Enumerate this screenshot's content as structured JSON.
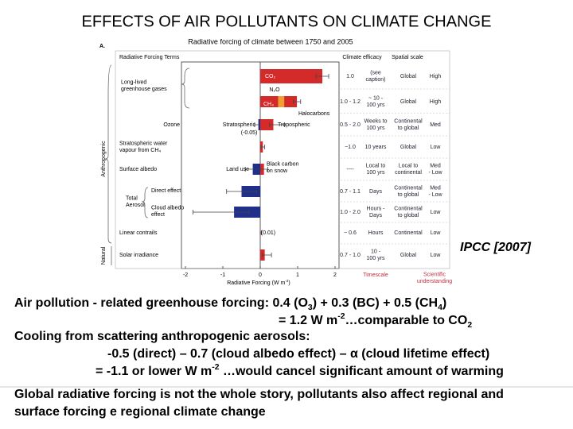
{
  "slide_title": "EFFECTS OF AIR POLLUTANTS ON CLIMATE CHANGE",
  "chart_data": {
    "type": "bar",
    "orientation": "horizontal",
    "panel_label": "A.",
    "title": "Radiative forcing of climate between 1750 and 2005",
    "terms_header": "Radiative Forcing Terms",
    "efficacy_header": "Climate efficacy",
    "spatial_header": "Spatial scale",
    "timescale_header": "Timescale",
    "understanding_header": [
      "Scientific",
      "understanding"
    ],
    "xlabel": [
      {
        "text": "Radiative Forcing (W m"
      },
      {
        "text": "-2",
        "shift": "super"
      },
      {
        "text": ")"
      }
    ],
    "xlim": [
      -2,
      2
    ],
    "xticks": [
      -2,
      -1,
      0,
      1,
      2
    ],
    "group_labels": [
      "Anthropogenic",
      "Natural"
    ],
    "terms": [
      [
        "Long-lived",
        "greenhouse gases"
      ],
      [
        "Ozone"
      ],
      [
        "Stratospheric water",
        "vapour from CH₄"
      ],
      [
        "Surface albedo"
      ],
      [
        "Total",
        "Aerosol"
      ],
      [
        "Direct effect"
      ],
      [
        "Cloud albedo",
        "effect"
      ],
      [
        "Linear contrails"
      ],
      [
        "Solar irradiance"
      ]
    ],
    "bars": [
      {
        "label": [
          "CO₂"
        ],
        "value": 1.66,
        "color": "#d42a2a",
        "range": [
          1.49,
          1.83
        ]
      },
      {
        "label": [
          "CH₄"
        ],
        "value": 0.48,
        "color": "#d42a2a"
      },
      {
        "label": [
          "N₂O"
        ],
        "value": 0.16,
        "color": "#f0a030"
      },
      {
        "label": [
          "Halocarbons"
        ],
        "value": 0.34,
        "color": "#d42a2a",
        "range": [
          0.88,
          1.08
        ]
      },
      {
        "label": [
          "Stratospheric"
        ],
        "value": -0.05,
        "value_label": "(-0.05)",
        "color": "#1f2f8a",
        "range": [
          -0.15,
          0.05
        ]
      },
      {
        "label": [
          "Tropospheric"
        ],
        "value": 0.35,
        "color": "#d42a2a",
        "range": [
          0.25,
          0.65
        ]
      },
      {
        "value": 0.07,
        "color": "#d42a2a",
        "range": [
          0.02,
          0.12
        ]
      },
      {
        "label": [
          "Land use"
        ],
        "value": -0.2,
        "color": "#1f2f8a",
        "range": [
          -0.4,
          0.0
        ]
      },
      {
        "label": [
          "Black carbon",
          "on snow"
        ],
        "value": 0.1,
        "color": "#d42a2a",
        "range": [
          0.0,
          0.2
        ]
      },
      {
        "value": -0.5,
        "color": "#1f2f8a",
        "range": [
          -0.9,
          -0.1
        ]
      },
      {
        "value": -0.7,
        "color": "#1f2f8a",
        "range": [
          -1.8,
          -0.3
        ]
      },
      {
        "value": 0.01,
        "value_label": "(0.01)",
        "color": "#d42a2a",
        "range": [
          0.003,
          0.03
        ]
      },
      {
        "value": 0.12,
        "color": "#d42a2a",
        "range": [
          0.06,
          0.3
        ]
      }
    ],
    "table": [
      {
        "efficacy": [
          "1.0"
        ],
        "timescale": [
          "(see",
          "caption)"
        ],
        "spatial": [
          "Global"
        ],
        "understanding": [
          "High"
        ]
      },
      {
        "efficacy": [
          "1.0 - 1.2"
        ],
        "timescale": [
          "~ 10 -",
          "100 yrs"
        ],
        "spatial": [
          "Global"
        ],
        "understanding": [
          "High"
        ]
      },
      {
        "efficacy": [
          "0.5 - 2.0"
        ],
        "timescale": [
          "Weeks to",
          "100 yrs"
        ],
        "spatial": [
          "Continental",
          "to global"
        ],
        "understanding": [
          "Med"
        ]
      },
      {
        "efficacy": [
          "~1.0"
        ],
        "timescale": [
          "10 years"
        ],
        "spatial": [
          "Global"
        ],
        "understanding": [
          "Low"
        ]
      },
      {
        "efficacy": [
          "----"
        ],
        "timescale": [
          "Local to",
          "100 yrs"
        ],
        "spatial": [
          "Local to",
          "continental"
        ],
        "understanding": [
          "Med",
          "- Low"
        ]
      },
      {
        "efficacy": [
          "0.7 - 1.1"
        ],
        "timescale": [
          "Days"
        ],
        "spatial": [
          "Continental",
          "to global"
        ],
        "understanding": [
          "Med",
          "- Low"
        ]
      },
      {
        "efficacy": [
          "1.0 - 2.0"
        ],
        "timescale": [
          "Hours -",
          "Days"
        ],
        "spatial": [
          "Continental",
          "to global"
        ],
        "understanding": [
          "Low"
        ]
      },
      {
        "efficacy": [
          "~ 0.6"
        ],
        "timescale": [
          "Hours"
        ],
        "spatial": [
          "Continental"
        ],
        "understanding": [
          "Low"
        ]
      },
      {
        "efficacy": [
          "0.7 - 1.0"
        ],
        "timescale": [
          "10 -",
          "100 yrs"
        ],
        "spatial": [
          "Global"
        ],
        "understanding": [
          "Low"
        ]
      }
    ]
  },
  "source": "IPCC [2007]",
  "text_lines": [
    [
      {
        "text": "Air pollution - related greenhouse forcing: 0.4 (O"
      },
      {
        "text": "3",
        "shift": "sub"
      },
      {
        "text": ") + 0.3 (BC) + 0.5 (CH"
      },
      {
        "text": "4",
        "shift": "sub"
      },
      {
        "text": ")"
      }
    ],
    [
      {
        "text": "= 1.2 W m"
      },
      {
        "text": "-2",
        "shift": "super"
      },
      {
        "text": "…comparable to CO"
      },
      {
        "text": "2",
        "shift": "sub"
      }
    ],
    [
      {
        "text": "Cooling from scattering anthropogenic aerosols:"
      }
    ],
    [
      {
        "text": "-0.5 (direct) – 0.7 (cloud albedo effect) – α (cloud lifetime effect)"
      }
    ],
    [
      {
        "text": "= -1.1 or lower W m"
      },
      {
        "text": "-2",
        "shift": "super"
      },
      {
        "text": " …would cancel significant amount of warming"
      }
    ],
    [
      {
        "text": "Global radiative forcing is not the whole story, pollutants also affect regional and"
      }
    ],
    [
      {
        "text": "surface forcing e regional climate change"
      }
    ]
  ]
}
